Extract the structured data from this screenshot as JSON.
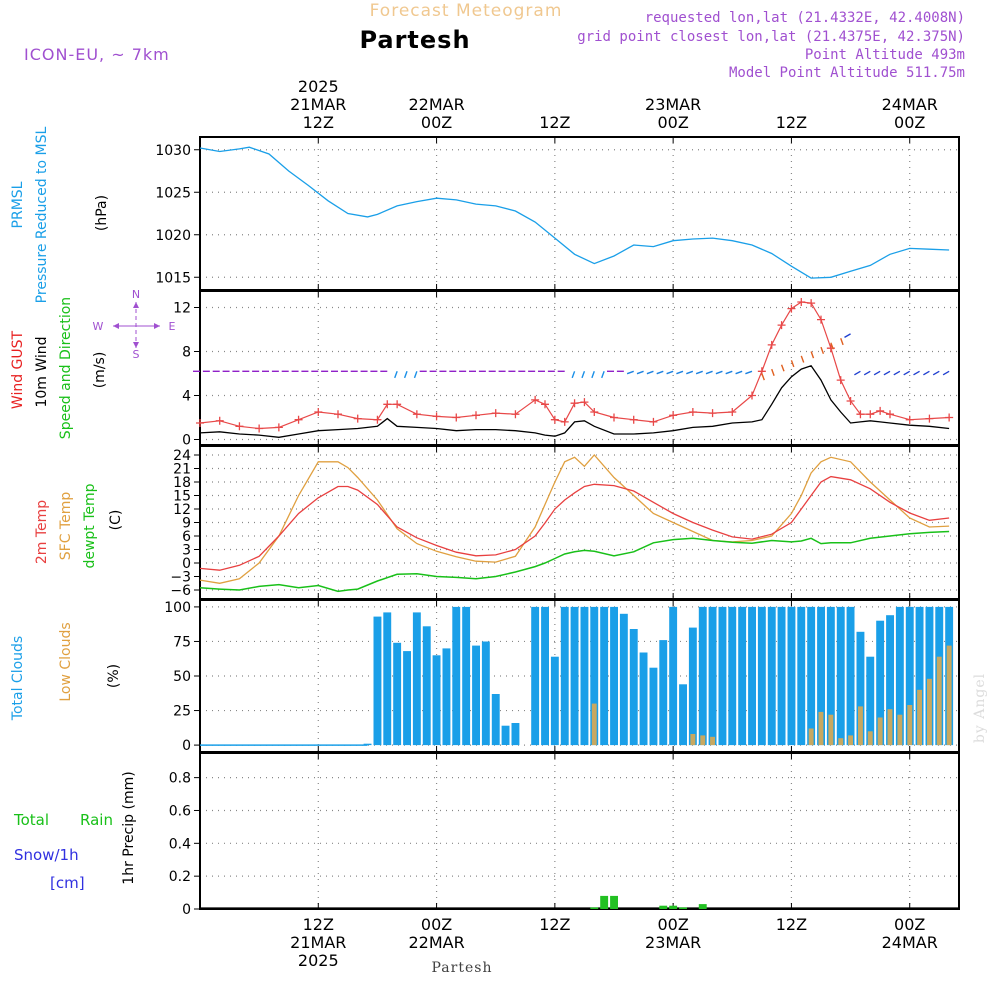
{
  "header": {
    "super_title": "Forecast Meteogram",
    "location": "Partesh",
    "model": "ICON-EU, ~ 7km",
    "requested": "requested lon,lat (21.4332E, 42.4008N)",
    "grid_point": "grid point closest lon,lat (21.4375E, 42.375N)",
    "point_altitude": "Point Altitude 493m",
    "model_altitude": "Model Point Altitude 511.75m",
    "footer_location": "Partesh",
    "watermark": "by Angel"
  },
  "time_axis": {
    "top_ticks": [
      {
        "t": 12,
        "lines": [
          "2025",
          "21MAR",
          "12Z"
        ]
      },
      {
        "t": 24,
        "lines": [
          "22MAR",
          "00Z"
        ]
      },
      {
        "t": 36,
        "lines": [
          "12Z"
        ]
      },
      {
        "t": 48,
        "lines": [
          "23MAR",
          "00Z"
        ]
      },
      {
        "t": 60,
        "lines": [
          "12Z"
        ]
      },
      {
        "t": 72,
        "lines": [
          "24MAR",
          "00Z"
        ]
      }
    ],
    "bottom_ticks": [
      {
        "t": 12,
        "lines": [
          "12Z",
          "21MAR",
          "2025"
        ]
      },
      {
        "t": 24,
        "lines": [
          "00Z",
          "22MAR"
        ]
      },
      {
        "t": 36,
        "lines": [
          "12Z"
        ]
      },
      {
        "t": 48,
        "lines": [
          "00Z",
          "23MAR"
        ]
      },
      {
        "t": 60,
        "lines": [
          "12Z"
        ]
      },
      {
        "t": 72,
        "lines": [
          "00Z",
          "24MAR"
        ]
      }
    ],
    "t_start_hour_offset": 0,
    "t_end_hour_offset": 77
  },
  "panels": {
    "pressure": {
      "labels": [
        "PRMSL",
        "Pressure Reduced to MSL",
        "(hPa)"
      ],
      "colors": [
        "#1a9fe8",
        "#1a9fe8",
        "#000000"
      ],
      "yticks": [
        1015,
        1020,
        1025,
        1030
      ]
    },
    "wind": {
      "labels": [
        "Wind GUST",
        "10m Wind",
        "Speed and Direction",
        "(m/s)"
      ],
      "colors": [
        "#e82020",
        "#000000",
        "#19c019",
        "#000000"
      ],
      "yticks": [
        0,
        4,
        8,
        12
      ],
      "compass": {
        "n": "N",
        "s": "S",
        "w": "W",
        "e": "E"
      }
    },
    "temp": {
      "labels": [
        "2m Temp",
        "SFC Temp",
        "dewpt Temp",
        "(C)"
      ],
      "colors": [
        "#e84040",
        "#e0a040",
        "#19c019",
        "#000000"
      ],
      "yticks": [
        -6,
        -3,
        0,
        3,
        6,
        9,
        12,
        15,
        18,
        21,
        24
      ]
    },
    "clouds": {
      "labels": [
        "Total Clouds",
        "Low Clouds",
        "(%)"
      ],
      "colors": [
        "#1a9fe8",
        "#e0a040",
        "#000000"
      ],
      "yticks": [
        0,
        25,
        50,
        75,
        100
      ]
    },
    "precip": {
      "labels": [
        "Total",
        "Rain",
        "Snow/1h",
        "[cm]",
        "1hr Precip (mm)"
      ],
      "colors": [
        "#19c019",
        "#19c019",
        "#3030e0",
        "#3030e0",
        "#000000"
      ],
      "yticks": [
        "0",
        "0.2",
        "0.4",
        "0.6",
        "0.8"
      ]
    }
  },
  "colors": {
    "pressure": "#1a9fe8",
    "gust": "#e84848",
    "wind": "#000000",
    "t2m": "#e84040",
    "tsfc": "#e0a040",
    "dew": "#19c019",
    "total_cloud": "#1a9fe8",
    "low_cloud": "#c8a860",
    "rain": "#22c022",
    "header_orange": "#f0c890",
    "header_purple": "#a050d0"
  },
  "chart_data": [
    {
      "type": "line",
      "title": "PRMSL Pressure Reduced to MSL",
      "ylabel": "hPa",
      "ylim": [
        1013.5,
        1031.5
      ],
      "x_hours": [
        0,
        2,
        4,
        5,
        7,
        9,
        11,
        13,
        15,
        17,
        18,
        20,
        22,
        24,
        26,
        28,
        30,
        32,
        34,
        36,
        38,
        40,
        42,
        44,
        46,
        48,
        50,
        52,
        54,
        56,
        58,
        60,
        62,
        64,
        66,
        68,
        70,
        72,
        74,
        76
      ],
      "series": [
        {
          "name": "PRMSL",
          "values": [
            1030.2,
            1029.8,
            1030.1,
            1030.3,
            1029.5,
            1027.5,
            1025.8,
            1024,
            1022.5,
            1022.1,
            1022.4,
            1023.4,
            1023.9,
            1024.3,
            1024.1,
            1023.6,
            1023.4,
            1022.8,
            1021.5,
            1019.6,
            1017.7,
            1016.6,
            1017.5,
            1018.8,
            1018.6,
            1019.3,
            1019.5,
            1019.6,
            1019.3,
            1018.8,
            1017.8,
            1016.3,
            1014.9,
            1015,
            1015.7,
            1016.4,
            1017.7,
            1018.4,
            1018.3,
            1018.2
          ]
        }
      ]
    },
    {
      "type": "line",
      "title": "Wind GUST / 10m Wind Speed and Direction",
      "ylabel": "m/s",
      "ylim": [
        -0.5,
        13.5
      ],
      "x_hours": [
        0,
        2,
        4,
        6,
        8,
        10,
        12,
        14,
        16,
        18,
        19,
        20,
        22,
        24,
        26,
        28,
        30,
        32,
        34,
        35,
        36,
        37,
        38,
        39,
        40,
        42,
        44,
        46,
        48,
        50,
        52,
        54,
        56,
        57,
        58,
        59,
        60,
        61,
        62,
        63,
        64,
        65,
        66,
        67,
        68,
        69,
        70,
        72,
        74,
        76
      ],
      "series": [
        {
          "name": "Wind GUST",
          "values": [
            1.5,
            1.7,
            1.2,
            1.0,
            1.1,
            1.8,
            2.5,
            2.3,
            1.9,
            1.8,
            3.2,
            3.2,
            2.3,
            2.1,
            2.0,
            2.2,
            2.4,
            2.3,
            3.6,
            3.2,
            1.8,
            1.6,
            3.3,
            3.4,
            2.5,
            2.0,
            1.8,
            1.6,
            2.2,
            2.5,
            2.4,
            2.5,
            4.0,
            6.2,
            8.6,
            10.4,
            11.9,
            12.5,
            12.4,
            10.9,
            8.3,
            5.4,
            3.5,
            2.3,
            2.3,
            2.6,
            2.3,
            1.8,
            1.9,
            2.0
          ]
        },
        {
          "name": "10m Wind",
          "values": [
            0.6,
            0.7,
            0.5,
            0.4,
            0.2,
            0.5,
            0.8,
            0.9,
            1.0,
            1.2,
            1.9,
            1.2,
            1.1,
            1.0,
            0.8,
            0.9,
            0.9,
            0.8,
            0.6,
            0.4,
            0.3,
            0.6,
            1.6,
            1.7,
            1.2,
            0.5,
            0.5,
            0.6,
            0.8,
            1.1,
            1.2,
            1.5,
            1.6,
            1.8,
            3.2,
            4.7,
            5.7,
            6.4,
            6.7,
            5.4,
            3.6,
            2.5,
            1.5,
            1.6,
            1.7,
            1.6,
            1.5,
            1.3,
            1.2,
            1.0
          ]
        }
      ]
    },
    {
      "type": "line",
      "title": "2m Temp / SFC Temp / dewpt Temp",
      "ylabel": "C",
      "ylim": [
        -8,
        26
      ],
      "x_hours": [
        0,
        2,
        4,
        6,
        8,
        10,
        12,
        14,
        15,
        16,
        18,
        20,
        22,
        24,
        26,
        28,
        30,
        32,
        34,
        35,
        36,
        37,
        38,
        39,
        40,
        42,
        44,
        46,
        48,
        50,
        52,
        54,
        56,
        58,
        60,
        61,
        62,
        63,
        64,
        66,
        68,
        70,
        72,
        74,
        76
      ],
      "series": [
        {
          "name": "2m Temp",
          "values": [
            -1.2,
            -1.6,
            -0.5,
            1.5,
            6,
            11,
            14.5,
            17,
            17,
            16.2,
            13,
            8,
            5.6,
            3.9,
            2.4,
            1.6,
            1.8,
            3,
            6,
            8.9,
            12,
            14,
            15.6,
            17,
            17.5,
            17.2,
            16,
            13.5,
            11,
            9,
            7.3,
            5.8,
            5.3,
            6.4,
            9,
            12,
            15,
            18,
            19.2,
            18.5,
            16.5,
            13.5,
            11.1,
            9.5,
            10
          ]
        },
        {
          "name": "SFC Temp",
          "values": [
            -3.8,
            -4.5,
            -3.5,
            0,
            6,
            15,
            22.5,
            22.5,
            21.2,
            19,
            14,
            7.6,
            4.3,
            2.6,
            1.4,
            0.4,
            0.2,
            1.5,
            8,
            13,
            18,
            22.5,
            23.5,
            21.5,
            24,
            19,
            15,
            11,
            9,
            7,
            5,
            4.7,
            5,
            6,
            11,
            15,
            20,
            22.5,
            23.5,
            22.5,
            18,
            14,
            10,
            8,
            8.2
          ]
        },
        {
          "name": "dewpt Temp",
          "values": [
            -5.5,
            -5.8,
            -6.0,
            -5.2,
            -4.8,
            -5.5,
            -5,
            -6.3,
            -6,
            -5.8,
            -4,
            -2.5,
            -2.4,
            -3,
            -3.2,
            -3.5,
            -3,
            -2,
            -0.8,
            0,
            1,
            2,
            2.5,
            2.8,
            2.6,
            1.6,
            2.5,
            4.5,
            5.2,
            5.5,
            5,
            4.6,
            4.4,
            5,
            4.7,
            4.9,
            5.5,
            4.3,
            4.5,
            4.5,
            5.5,
            6,
            6.5,
            6.8,
            7
          ]
        }
      ]
    },
    {
      "type": "bar",
      "title": "Total Clouds / Low Clouds",
      "ylabel": "%",
      "ylim": [
        -5,
        105
      ],
      "x_hours": [
        17,
        18,
        19,
        20,
        21,
        22,
        23,
        24,
        25,
        26,
        27,
        28,
        29,
        30,
        31,
        32,
        33,
        34,
        35,
        36,
        37,
        38,
        39,
        40,
        41,
        42,
        43,
        44,
        45,
        46,
        47,
        48,
        49,
        50,
        51,
        52,
        53,
        54,
        55,
        56,
        57,
        58,
        59,
        60,
        61,
        62,
        63,
        64,
        65,
        66,
        67,
        68,
        69,
        70,
        71,
        72,
        73,
        74,
        75,
        76
      ],
      "series": [
        {
          "name": "Total Clouds",
          "values": [
            1,
            93,
            96,
            74,
            68,
            96,
            86,
            65,
            70,
            100,
            100,
            72,
            75,
            37,
            14,
            16,
            0,
            100,
            100,
            64,
            100,
            100,
            100,
            100,
            100,
            100,
            95,
            84,
            67,
            56,
            76,
            100,
            44,
            85,
            100,
            100,
            100,
            100,
            100,
            100,
            100,
            100,
            100,
            100,
            100,
            100,
            100,
            100,
            100,
            100,
            82,
            64,
            90,
            94,
            100,
            100,
            100,
            100,
            100,
            100
          ]
        },
        {
          "name": "Low Clouds",
          "values": [
            0,
            0,
            0,
            0,
            0,
            0,
            0,
            0,
            0,
            0,
            0,
            0,
            0,
            0,
            0,
            0,
            0,
            0,
            0,
            0,
            0,
            0,
            0,
            30,
            0,
            0,
            0,
            0,
            0,
            0,
            0,
            0,
            0,
            8,
            7,
            6,
            0,
            0,
            0,
            0,
            0,
            0,
            0,
            0,
            0,
            12,
            24,
            22,
            5,
            7,
            28,
            10,
            20,
            26,
            22,
            29,
            40,
            48,
            64,
            72
          ]
        }
      ]
    },
    {
      "type": "bar",
      "title": "1hr Precip",
      "ylabel": "1hr Precip (mm)",
      "ylim": [
        0,
        0.95
      ],
      "x_hours": [
        40,
        41,
        42,
        47,
        48,
        49,
        51
      ],
      "series": [
        {
          "name": "Total Rain",
          "values": [
            0.01,
            0.08,
            0.08,
            0.02,
            0.02,
            0.01,
            0.03
          ]
        }
      ]
    }
  ]
}
